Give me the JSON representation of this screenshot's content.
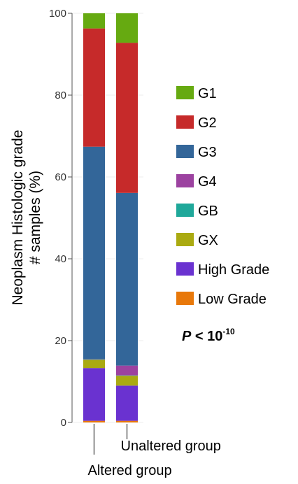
{
  "chart_data": {
    "type": "bar",
    "stacked": true,
    "ylabel_lines": [
      "Neoplasm Histologic grade",
      "# samples (%)"
    ],
    "ylim": [
      0,
      100
    ],
    "yticks": [
      "0",
      "20",
      "40",
      "60",
      "80",
      "100"
    ],
    "categories": [
      "Altered group",
      "Unaltered group"
    ],
    "series": [
      {
        "name": "Low Grade",
        "color": "#e8780a",
        "values": [
          0.4,
          0.4
        ]
      },
      {
        "name": "High Grade",
        "color": "#6a32d0",
        "values": [
          12.9,
          8.6
        ]
      },
      {
        "name": "GX",
        "color": "#aaaa11",
        "values": [
          2.0,
          2.4
        ]
      },
      {
        "name": "GB",
        "color": "#1fa89a",
        "values": [
          0.1,
          0.1
        ]
      },
      {
        "name": "G4",
        "color": "#9c42a0",
        "values": [
          0.1,
          2.4
        ]
      },
      {
        "name": "G3",
        "color": "#336699",
        "values": [
          51.9,
          42.2
        ]
      },
      {
        "name": "G2",
        "color": "#c62a2a",
        "values": [
          28.9,
          36.7
        ]
      },
      {
        "name": "G1",
        "color": "#66aa11",
        "values": [
          3.7,
          7.2
        ]
      }
    ],
    "legend_order": [
      "G1",
      "G2",
      "G3",
      "G4",
      "GB",
      "GX",
      "High Grade",
      "Low Grade"
    ],
    "legend_position": "right",
    "grid": true,
    "annotation": {
      "prefix": "P",
      "text": " < 10",
      "superscript": "-10"
    }
  }
}
